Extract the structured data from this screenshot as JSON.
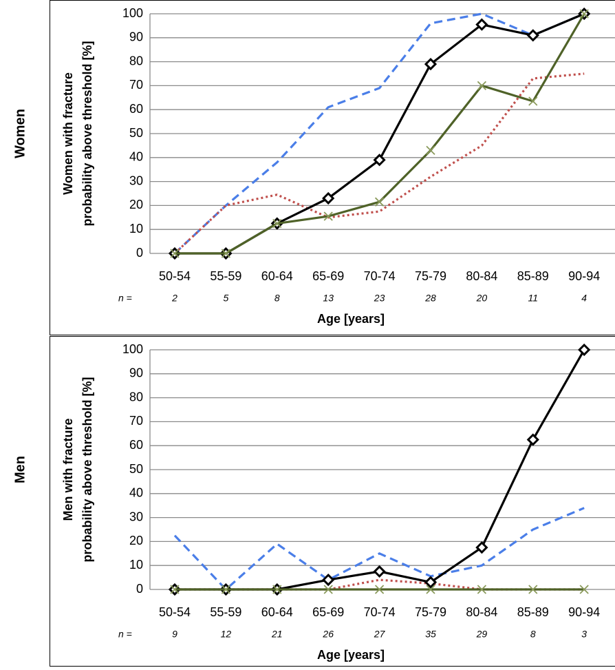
{
  "chart_data": [
    {
      "type": "line",
      "side_label": "Women",
      "y_label": [
        "Women with fracture",
        "probability above threshold [%]"
      ],
      "x_label": "Age [years]",
      "categories": [
        "50-54",
        "55-59",
        "60-64",
        "65-69",
        "70-74",
        "75-79",
        "80-84",
        "85-89",
        "90-94"
      ],
      "n_prefix": "n =",
      "n": [
        "2",
        "5",
        "8",
        "13",
        "23",
        "28",
        "20",
        "11",
        "4"
      ],
      "ylim": [
        0,
        100
      ],
      "yticks": [
        0,
        10,
        20,
        30,
        40,
        50,
        60,
        70,
        80,
        90,
        100
      ],
      "grid": true,
      "series": [
        {
          "color": "#4a7ee8",
          "dash": "12,7",
          "marker": "none",
          "values": [
            0,
            20,
            38,
            61,
            69,
            96,
            100,
            91,
            100
          ]
        },
        {
          "color": "#c0504d",
          "dash": "3,4",
          "marker": "none",
          "values": [
            0,
            20,
            24.5,
            15,
            17.5,
            32,
            45,
            73,
            75
          ]
        },
        {
          "color": "#000000",
          "dash": "none",
          "marker": "diamond",
          "values": [
            0,
            0,
            12.5,
            23,
            39,
            79,
            95.5,
            91,
            100
          ]
        },
        {
          "color": "#4f6228",
          "dash": "none",
          "marker": "x",
          "values": [
            0,
            0,
            12.5,
            15.5,
            21.5,
            43,
            70,
            63.5,
            100
          ]
        }
      ]
    },
    {
      "type": "line",
      "side_label": "Men",
      "y_label": [
        "Men with fracture",
        "probability above threshold [%]"
      ],
      "x_label": "Age [years]",
      "categories": [
        "50-54",
        "55-59",
        "60-64",
        "65-69",
        "70-74",
        "75-79",
        "80-84",
        "85-89",
        "90-94"
      ],
      "n_prefix": "n =",
      "n": [
        "9",
        "12",
        "21",
        "26",
        "27",
        "35",
        "29",
        "8",
        "3"
      ],
      "ylim": [
        0,
        100
      ],
      "yticks": [
        0,
        10,
        20,
        30,
        40,
        50,
        60,
        70,
        80,
        90,
        100
      ],
      "grid": true,
      "series": [
        {
          "color": "#4a7ee8",
          "dash": "12,7",
          "marker": "none",
          "values": [
            22.5,
            0,
            19,
            4,
            15,
            5.5,
            10,
            25,
            34
          ]
        },
        {
          "color": "#c0504d",
          "dash": "3,4",
          "marker": "none",
          "values": [
            0,
            0,
            0,
            0,
            4,
            2.5,
            0,
            0,
            0
          ]
        },
        {
          "color": "#000000",
          "dash": "none",
          "marker": "diamond",
          "values": [
            0,
            0,
            0,
            4,
            7.5,
            3,
            17.5,
            62.5,
            100
          ]
        },
        {
          "color": "#4f6228",
          "dash": "none",
          "marker": "x",
          "values": [
            0,
            0,
            0,
            0,
            0,
            0,
            0,
            0,
            0
          ]
        }
      ]
    }
  ]
}
